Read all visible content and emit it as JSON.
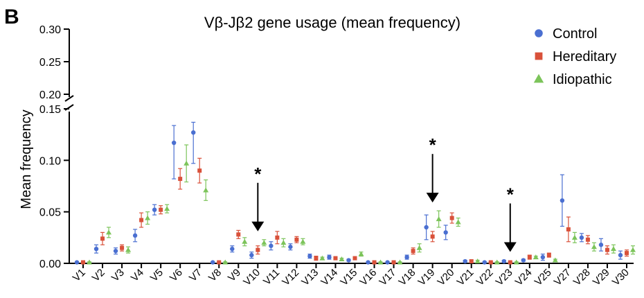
{
  "panel_label": "B",
  "chart_data": {
    "type": "dot",
    "title": "Vβ-Jβ2 gene usage (mean frequency)",
    "y_label": "Mean frequency",
    "categories": [
      "V1",
      "V2",
      "V3",
      "V4",
      "V5",
      "V6",
      "V7",
      "V8",
      "V9",
      "V10",
      "V11",
      "V12",
      "V13",
      "V14",
      "V15",
      "V16",
      "V17",
      "V18",
      "V19",
      "V20",
      "V21",
      "V22",
      "V23",
      "V24",
      "V25",
      "V27",
      "V28",
      "V29",
      "V30"
    ],
    "series": [
      {
        "name": "Control",
        "color": "#4a6fd1",
        "marker": "circle",
        "values": [
          0.001,
          0.014,
          0.012,
          0.027,
          0.052,
          0.117,
          0.127,
          0.001,
          0.014,
          0.008,
          0.017,
          0.016,
          0.007,
          0.006,
          0.003,
          0.001,
          0.001,
          0.006,
          0.035,
          0.03,
          0.002,
          0.001,
          0.002,
          0.003,
          0.006,
          0.061,
          0.025,
          0.018,
          0.008
        ],
        "errors": [
          0.0005,
          0.004,
          0.003,
          0.006,
          0.005,
          0.035,
          0.03,
          0.0005,
          0.003,
          0.003,
          0.004,
          0.003,
          0.002,
          0.002,
          0.001,
          0.0005,
          0.0005,
          0.002,
          0.012,
          0.007,
          0.001,
          0.0005,
          0.001,
          0.001,
          0.003,
          0.025,
          0.004,
          0.006,
          0.004
        ]
      },
      {
        "name": "Hereditary",
        "color": "#d9513a",
        "marker": "square",
        "values": [
          0.001,
          0.024,
          0.015,
          0.042,
          0.052,
          0.082,
          0.09,
          0.001,
          0.028,
          0.013,
          0.025,
          0.023,
          0.005,
          0.005,
          0.005,
          0.001,
          0.001,
          0.012,
          0.026,
          0.044,
          0.002,
          0.001,
          0.001,
          0.006,
          0.008,
          0.033,
          0.023,
          0.013,
          0.01
        ],
        "errors": [
          0.0005,
          0.006,
          0.003,
          0.007,
          0.004,
          0.01,
          0.012,
          0.0005,
          0.004,
          0.004,
          0.006,
          0.003,
          0.002,
          0.001,
          0.001,
          0.0005,
          0.0005,
          0.003,
          0.005,
          0.005,
          0.001,
          0.0005,
          0.0005,
          0.002,
          0.002,
          0.012,
          0.004,
          0.004,
          0.003
        ]
      },
      {
        "name": "Idiopathic",
        "color": "#7cc45a",
        "marker": "triangle",
        "values": [
          0.001,
          0.03,
          0.013,
          0.044,
          0.053,
          0.097,
          0.071,
          0.001,
          0.021,
          0.02,
          0.02,
          0.021,
          0.005,
          0.004,
          0.009,
          0.001,
          0.001,
          0.015,
          0.043,
          0.04,
          0.002,
          0.001,
          0.001,
          0.006,
          0.003,
          0.025,
          0.016,
          0.014,
          0.013
        ],
        "errors": [
          0.0005,
          0.005,
          0.003,
          0.006,
          0.004,
          0.018,
          0.01,
          0.0005,
          0.004,
          0.003,
          0.004,
          0.003,
          0.001,
          0.001,
          0.002,
          0.0005,
          0.0005,
          0.004,
          0.008,
          0.004,
          0.001,
          0.0005,
          0.0005,
          0.001,
          0.001,
          0.005,
          0.004,
          0.004,
          0.004
        ]
      }
    ],
    "ylim": [
      0,
      0.3
    ],
    "ybreak": [
      0.15,
      0.2
    ],
    "yticks": [
      {
        "value": 0,
        "label": "0.00"
      },
      {
        "value": 0.05,
        "label": "0.05"
      },
      {
        "value": 0.1,
        "label": "0.10"
      },
      {
        "value": 0.15,
        "label": "0.15"
      },
      {
        "value": 0.2,
        "label": "0.20"
      },
      {
        "value": 0.25,
        "label": "0.25"
      },
      {
        "value": 0.3,
        "label": "0.30"
      }
    ],
    "annotations": [
      {
        "text": "*",
        "category": "V10"
      },
      {
        "text": "*",
        "category": "V19"
      },
      {
        "text": "*",
        "category": "V23"
      }
    ],
    "legend": "top-right"
  }
}
